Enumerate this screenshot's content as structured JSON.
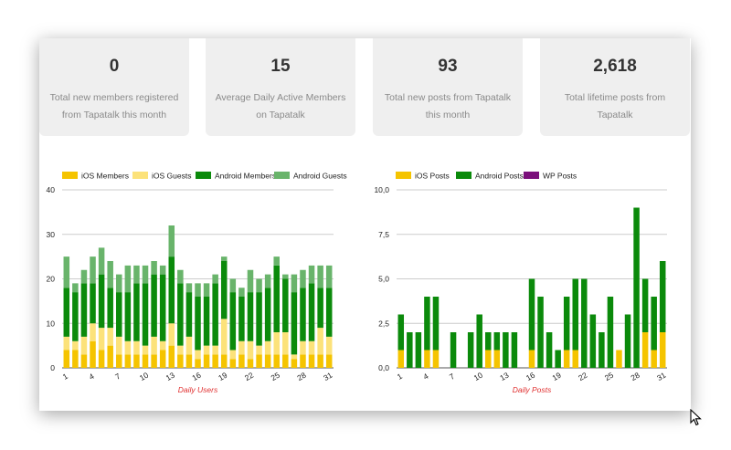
{
  "stats": [
    {
      "value": "0",
      "label": "Total new members registered from Tapatalk this month"
    },
    {
      "value": "15",
      "label": "Average Daily Active Members on Tapatalk"
    },
    {
      "value": "93",
      "label": "Total new posts from Tapatalk this month"
    },
    {
      "value": "2,618",
      "label": "Total lifetime posts from Tapatalk"
    }
  ],
  "chart_data": [
    {
      "type": "bar",
      "stacked": true,
      "xlabel": "Daily Users",
      "ylim": [
        0,
        40
      ],
      "yticks": [
        "0",
        "10",
        "20",
        "30",
        "40"
      ],
      "xtick_labels": [
        "1",
        "4",
        "7",
        "10",
        "13",
        "16",
        "19",
        "22",
        "25",
        "28",
        "31"
      ],
      "categories": [
        1,
        2,
        3,
        4,
        5,
        6,
        7,
        8,
        9,
        10,
        11,
        12,
        13,
        14,
        15,
        16,
        17,
        18,
        19,
        20,
        21,
        22,
        23,
        24,
        25,
        26,
        27,
        28,
        29,
        30,
        31
      ],
      "series": [
        {
          "name": "iOS Members",
          "color": "#f5c400",
          "values": [
            4,
            4,
            3,
            6,
            4,
            5,
            3,
            3,
            3,
            3,
            3,
            4,
            5,
            3,
            3,
            2,
            3,
            3,
            3,
            2,
            3,
            2,
            3,
            3,
            3,
            3,
            2,
            3,
            3,
            3,
            3
          ]
        },
        {
          "name": "iOS Guests",
          "color": "#fce27a",
          "values": [
            3,
            2,
            4,
            4,
            5,
            4,
            4,
            3,
            3,
            2,
            4,
            2,
            5,
            2,
            4,
            2,
            2,
            2,
            8,
            2,
            3,
            4,
            2,
            3,
            5,
            5,
            1,
            3,
            3,
            6,
            4
          ]
        },
        {
          "name": "Android Members",
          "color": "#0b8a0b",
          "values": [
            11,
            11,
            12,
            9,
            12,
            9,
            10,
            11,
            13,
            14,
            14,
            15,
            15,
            14,
            10,
            12,
            11,
            14,
            13,
            13,
            10,
            11,
            12,
            12,
            15,
            12,
            14,
            12,
            13,
            9,
            11
          ]
        },
        {
          "name": "Android Guests",
          "color": "#69b46b",
          "values": [
            7,
            2,
            3,
            6,
            6,
            6,
            4,
            6,
            4,
            4,
            3,
            2,
            7,
            3,
            2,
            3,
            3,
            2,
            1,
            3,
            2,
            5,
            3,
            3,
            2,
            1,
            4,
            4,
            4,
            5,
            5
          ]
        }
      ]
    },
    {
      "type": "bar",
      "stacked": true,
      "xlabel": "Daily Posts",
      "ylim": [
        0,
        10
      ],
      "yticks": [
        "0,0",
        "2,5",
        "5,0",
        "7,5",
        "10,0"
      ],
      "xtick_labels": [
        "1",
        "4",
        "7",
        "10",
        "13",
        "16",
        "19",
        "22",
        "25",
        "28",
        "31"
      ],
      "categories": [
        1,
        2,
        3,
        4,
        5,
        6,
        7,
        8,
        9,
        10,
        11,
        12,
        13,
        14,
        15,
        16,
        17,
        18,
        19,
        20,
        21,
        22,
        23,
        24,
        25,
        26,
        27,
        28,
        29,
        30,
        31
      ],
      "series": [
        {
          "name": "iOS Posts",
          "color": "#f5c400",
          "values": [
            1,
            0,
            0,
            1,
            1,
            0,
            0,
            0,
            0,
            0,
            1,
            1,
            0,
            0,
            0,
            1,
            0,
            0,
            0,
            1,
            1,
            0,
            0,
            0,
            0,
            1,
            0,
            0,
            2,
            1,
            2
          ]
        },
        {
          "name": "Android Posts",
          "color": "#0b8a0b",
          "values": [
            2,
            2,
            2,
            3,
            3,
            0,
            2,
            0,
            2,
            3,
            1,
            1,
            2,
            2,
            0,
            4,
            4,
            2,
            1,
            3,
            4,
            5,
            3,
            2,
            4,
            0,
            3,
            9,
            3,
            3,
            4
          ]
        },
        {
          "name": "WP Posts",
          "color": "#7b0f7b",
          "values": [
            0,
            0,
            0,
            0,
            0,
            0,
            0,
            0,
            0,
            0,
            0,
            0,
            0,
            0,
            0,
            0,
            0,
            0,
            0,
            0,
            0,
            0,
            0,
            0,
            0,
            0,
            0,
            0,
            0,
            0,
            0
          ]
        }
      ]
    }
  ]
}
